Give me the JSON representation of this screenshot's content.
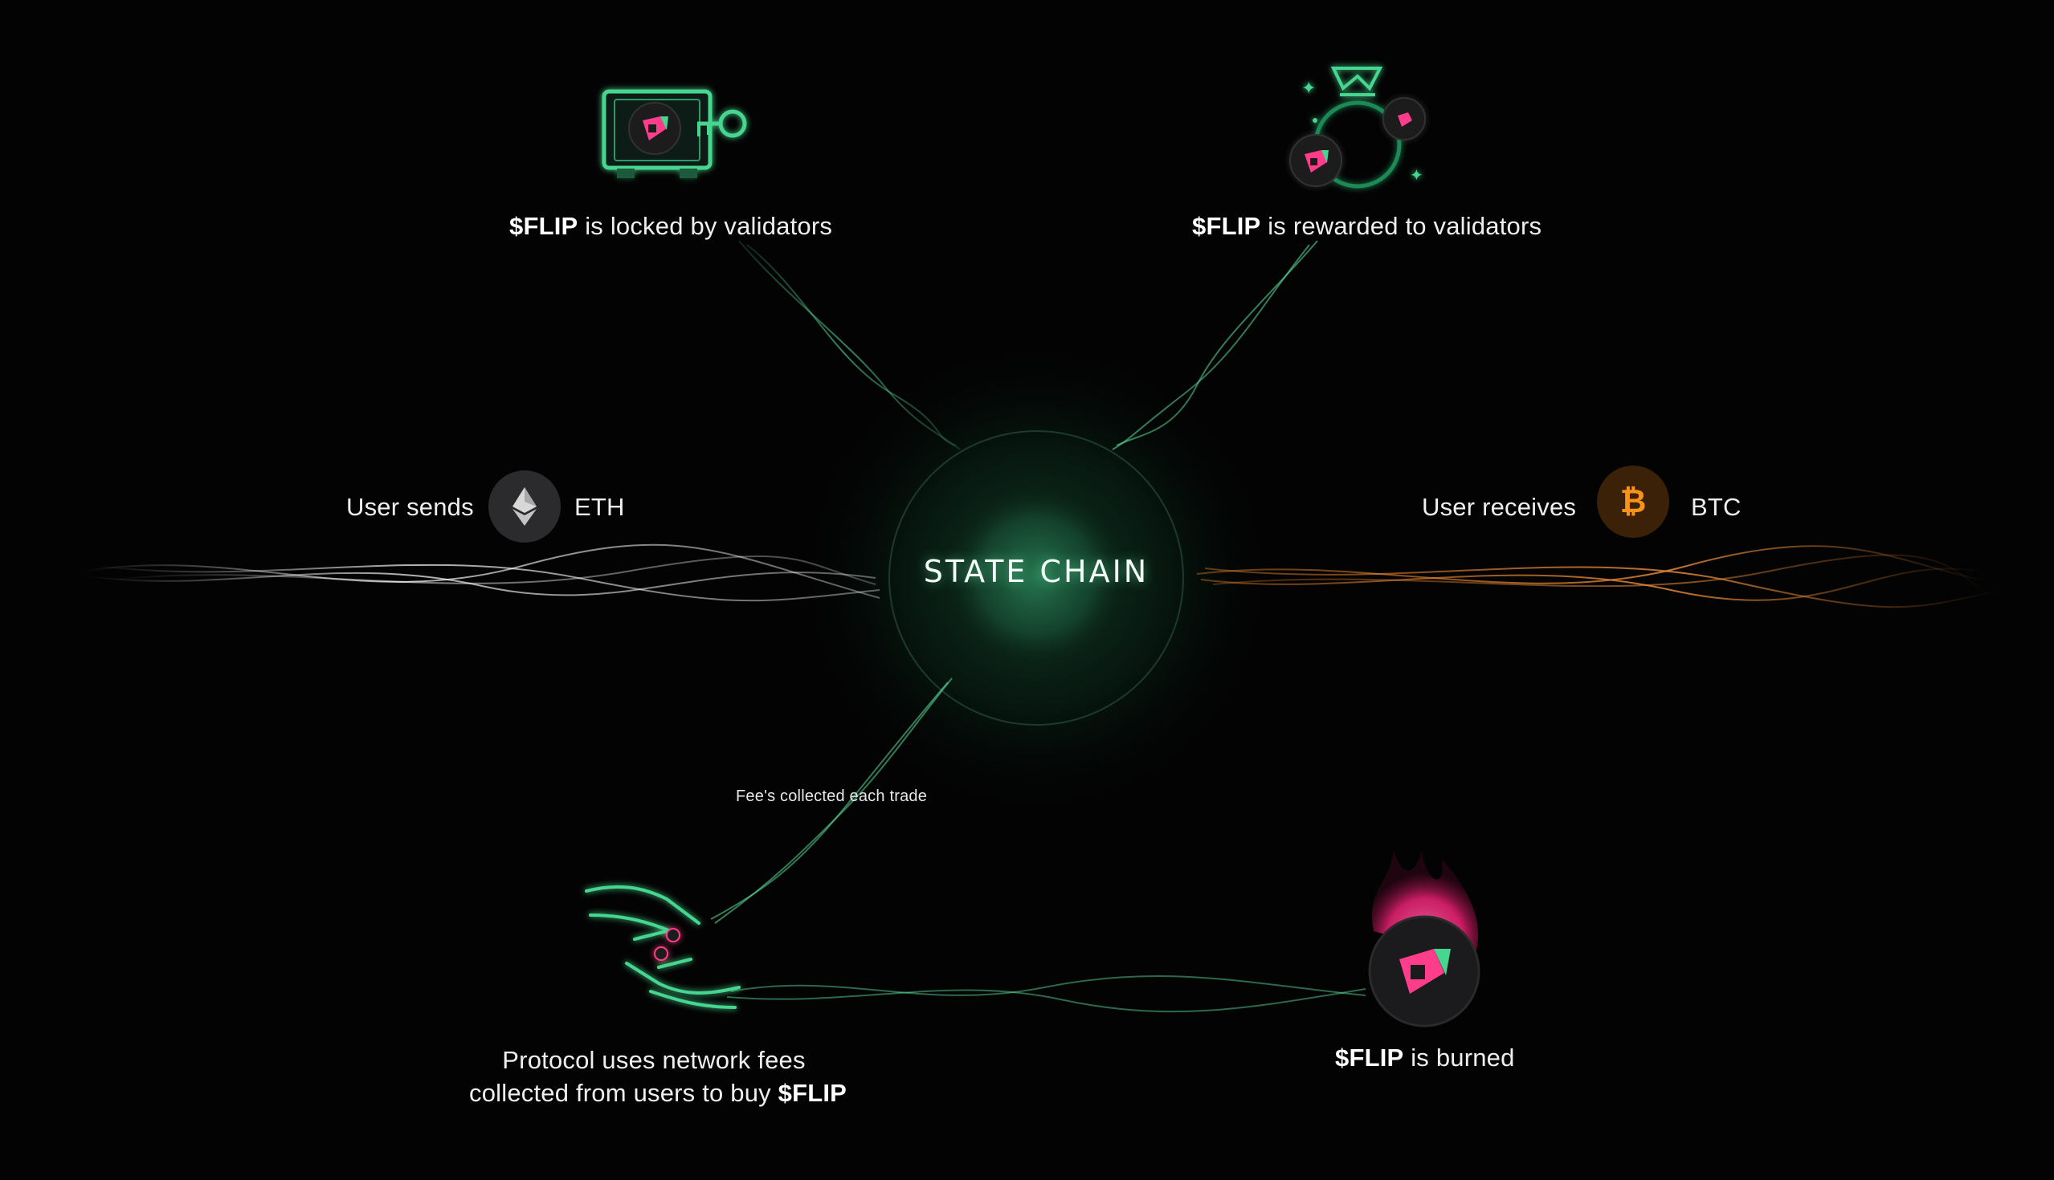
{
  "center": {
    "title": "STATE CHAIN"
  },
  "nodes": {
    "locked": {
      "bold": "$FLIP",
      "text": " is locked by validators",
      "icon": "vault-key-icon"
    },
    "rewarded": {
      "bold": "$FLIP",
      "text": " is rewarded to validators",
      "icon": "rewards-bag-icon"
    },
    "send": {
      "prefix": "User sends",
      "asset": "ETH",
      "icon": "ethereum-icon"
    },
    "receive": {
      "prefix": "User receives",
      "asset": "BTC",
      "icon": "bitcoin-icon"
    },
    "fees": {
      "caption": "Fee's collected each trade"
    },
    "buy": {
      "line1": "Protocol uses network fees",
      "line2": "collected from users to buy ",
      "bold": "$FLIP",
      "icon": "hands-exchange-icon"
    },
    "burn": {
      "bold": "$FLIP",
      "text": " is burned",
      "icon": "flame-token-icon"
    }
  },
  "colors": {
    "accent_green": "#46d68f",
    "flip_pink": "#ff3d8b",
    "btc_orange": "#f7931a",
    "eth_silver": "#c9c9c9",
    "wire_white": "#b9b9b9",
    "wire_orange": "#e8842a"
  }
}
